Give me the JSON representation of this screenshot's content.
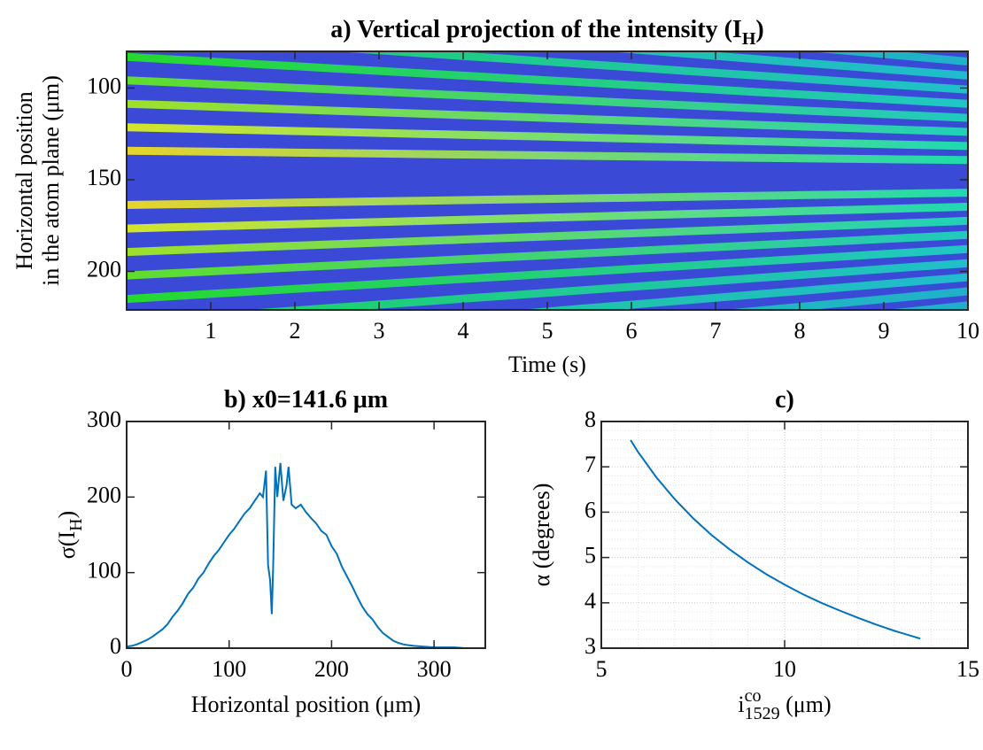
{
  "chart_data": [
    {
      "type": "heatmap",
      "title": {
        "text": "a) Vertical projection of the intensity (I",
        "sub": "H",
        "end": ")"
      },
      "xlabel": {
        "text": "Time (s)"
      },
      "ylabel": [
        "Horizontal position",
        "in the atom plane (μm)"
      ],
      "xlim": [
        0,
        10
      ],
      "xticks": [
        1,
        2,
        3,
        4,
        5,
        6,
        7,
        8,
        9,
        10
      ],
      "ylim": [
        221,
        80
      ],
      "yticks": [
        100,
        150,
        200
      ]
    },
    {
      "type": "line",
      "title": {
        "text": "b) x0=141.6 μm"
      },
      "xlabel": {
        "text": "Horizontal position (μm)"
      },
      "ylabel": {
        "text": "σ(I",
        "sub": "H",
        "end": ")"
      },
      "xlim": [
        0,
        350
      ],
      "xticks": [
        0,
        100,
        200,
        300
      ],
      "ylim": [
        0,
        300
      ],
      "yticks": [
        0,
        100,
        200,
        300
      ],
      "color": "#0072bd",
      "x": [
        0,
        5,
        10,
        15,
        20,
        25,
        30,
        35,
        40,
        45,
        50,
        55,
        60,
        65,
        70,
        75,
        80,
        85,
        90,
        95,
        100,
        105,
        110,
        115,
        120,
        125,
        130,
        133,
        136,
        138,
        140,
        141.6,
        143,
        145,
        147,
        150,
        153,
        156,
        158,
        161,
        165,
        170,
        175,
        180,
        185,
        190,
        195,
        200,
        205,
        210,
        215,
        220,
        225,
        230,
        235,
        240,
        245,
        250,
        255,
        260,
        265,
        270,
        275,
        280,
        290,
        300,
        310,
        320,
        330,
        340,
        350
      ],
      "values": [
        2,
        3,
        5,
        8,
        11,
        15,
        20,
        25,
        32,
        42,
        50,
        60,
        72,
        80,
        92,
        100,
        112,
        122,
        130,
        140,
        150,
        158,
        168,
        178,
        185,
        195,
        205,
        200,
        235,
        110,
        90,
        45,
        110,
        240,
        200,
        245,
        195,
        215,
        240,
        190,
        185,
        190,
        180,
        172,
        165,
        155,
        150,
        135,
        125,
        108,
        95,
        82,
        68,
        55,
        45,
        38,
        28,
        20,
        15,
        10,
        7,
        5,
        4,
        3,
        2,
        1,
        1,
        1,
        0,
        0,
        0
      ]
    },
    {
      "type": "line",
      "title": {
        "text": "c)"
      },
      "xlabel": {
        "text": "i",
        "sup": "co",
        "sub": "1529",
        "end": " (μm)"
      },
      "ylabel": {
        "text": "α (degrees)"
      },
      "xlim": [
        5,
        15
      ],
      "xticks": [
        5,
        10,
        15
      ],
      "ylim": [
        3,
        8
      ],
      "yticks": [
        3,
        4,
        5,
        6,
        7,
        8
      ],
      "grid": true,
      "minor_grid": true,
      "color": "#0072bd",
      "x": [
        5.8,
        6,
        6.5,
        7,
        7.5,
        8,
        8.5,
        9,
        9.5,
        10,
        10.5,
        11,
        11.5,
        12,
        12.5,
        13,
        13.7
      ],
      "values": [
        7.59,
        7.33,
        6.77,
        6.29,
        5.87,
        5.5,
        5.18,
        4.89,
        4.63,
        4.4,
        4.19,
        4.0,
        3.83,
        3.67,
        3.52,
        3.38,
        3.21
      ]
    }
  ]
}
